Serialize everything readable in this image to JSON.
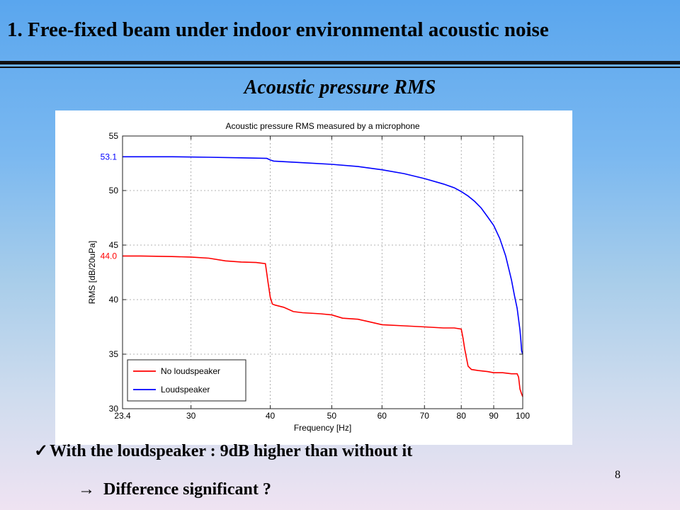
{
  "slide": {
    "title": "1. Free-fixed beam under indoor environmental acoustic noise",
    "subtitle": "Acoustic pressure RMS",
    "bullet_check": "✓",
    "bullet1": "With  the loudspeaker : 9dB higher than without it",
    "bullet2_arrow": "→",
    "bullet2": "Difference significant ?",
    "page_number": "8"
  },
  "chart_data": {
    "type": "line",
    "title": "Acoustic pressure RMS measured by a microphone",
    "xlabel": "Frequency [Hz]",
    "ylabel": "RMS [dB/20uPa]",
    "x_scale": "log",
    "xlim": [
      23.4,
      100
    ],
    "ylim": [
      30,
      55
    ],
    "x_ticks": [
      "23.4",
      "30",
      "40",
      "50",
      "60",
      "70",
      "80",
      "90",
      "100"
    ],
    "x_tick_values": [
      23.4,
      30,
      40,
      50,
      60,
      70,
      80,
      90,
      100
    ],
    "y_ticks": [
      "30",
      "35",
      "40",
      "45",
      "50",
      "55"
    ],
    "y_tick_values": [
      30,
      35,
      40,
      45,
      50,
      55
    ],
    "grid": true,
    "legend_position": "bottom-left",
    "annotations": [
      {
        "text": "53.1",
        "y": 53.1,
        "color": "#0000ff"
      },
      {
        "text": "44.0",
        "y": 44.0,
        "color": "#ff0000"
      }
    ],
    "series": [
      {
        "name": "No loudspeaker",
        "color": "#ff0000",
        "x": [
          23.4,
          25,
          28,
          30,
          32,
          34,
          36,
          38,
          39.3,
          39.7,
          40.0,
          40.3,
          40.7,
          42,
          43.5,
          45,
          48,
          50,
          52,
          55,
          57,
          60,
          65,
          70,
          75,
          78,
          80,
          80.5,
          81,
          81.5,
          82,
          83,
          85,
          88,
          90,
          93,
          96,
          98,
          98.5,
          99,
          99.5,
          100
        ],
        "y": [
          44.0,
          44.0,
          43.95,
          43.9,
          43.8,
          43.55,
          43.45,
          43.4,
          43.3,
          41.5,
          40.2,
          39.6,
          39.5,
          39.3,
          38.9,
          38.8,
          38.7,
          38.6,
          38.3,
          38.2,
          38.0,
          37.7,
          37.6,
          37.5,
          37.4,
          37.4,
          37.3,
          36.5,
          35.5,
          34.7,
          33.9,
          33.6,
          33.5,
          33.4,
          33.3,
          33.3,
          33.2,
          33.2,
          32.9,
          31.8,
          31.4,
          31.1
        ]
      },
      {
        "name": "Loudspeaker",
        "color": "#0000ff",
        "x": [
          23.4,
          28,
          32,
          36,
          39.5,
          40,
          40.5,
          45,
          50,
          55,
          60,
          65,
          70,
          75,
          78,
          80,
          82,
          84,
          86,
          88,
          90,
          92,
          94,
          96,
          97,
          98,
          98.5,
          99,
          99.3,
          99.6,
          100
        ],
        "y": [
          53.1,
          53.1,
          53.05,
          53.0,
          52.95,
          52.8,
          52.7,
          52.55,
          52.4,
          52.2,
          51.9,
          51.55,
          51.1,
          50.6,
          50.25,
          49.9,
          49.5,
          49.0,
          48.4,
          47.6,
          46.8,
          45.6,
          44.0,
          41.8,
          40.4,
          39.2,
          38.2,
          37.2,
          36.3,
          35.3,
          35.0
        ]
      }
    ]
  }
}
